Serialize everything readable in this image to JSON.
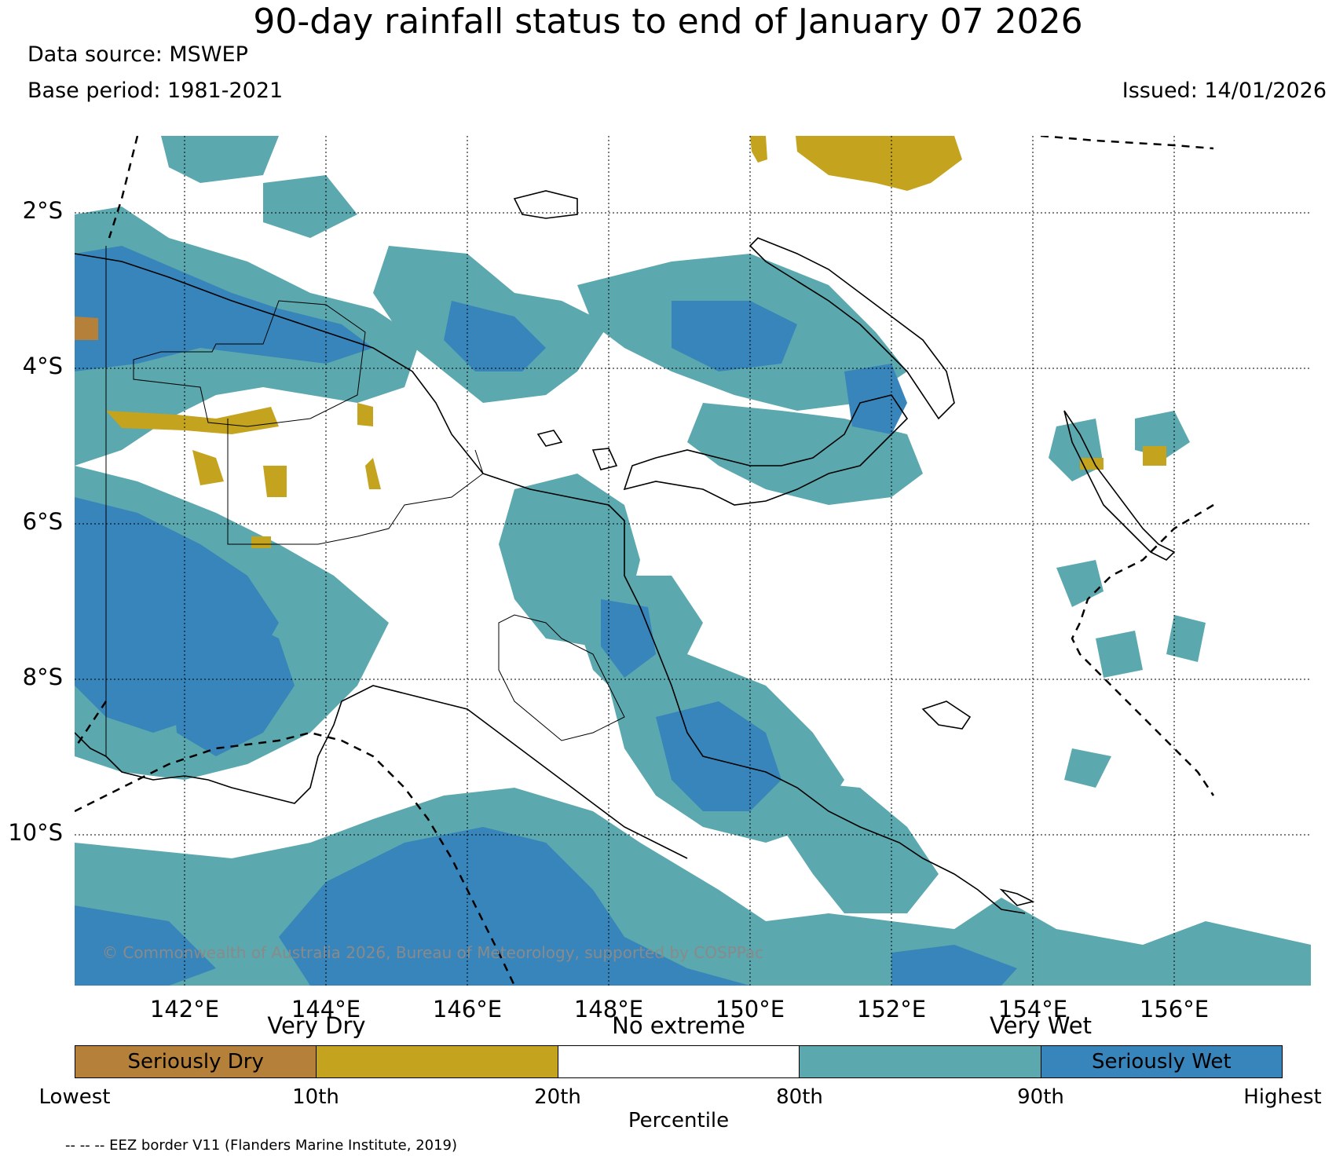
{
  "title": "90-day rainfall status to end of January 07 2026",
  "data_source": "Data source: MSWEP",
  "base_period": "Base period: 1981-2021",
  "issued": "Issued: 14/01/2026",
  "copyright": "© Commonwealth of Australia 2026, Bureau of Meteorology, supported by COSPPac",
  "lat_labels": [
    "2°S",
    "4°S",
    "6°S",
    "8°S",
    "10°S"
  ],
  "lon_labels": [
    "142°E",
    "144°E",
    "146°E",
    "148°E",
    "150°E",
    "152°E",
    "154°E",
    "156°E"
  ],
  "colorbar": {
    "group_labels": [
      "Very Dry",
      "No extreme",
      "Very Wet"
    ],
    "segments": [
      {
        "label": "Seriously Dry",
        "color": "#b5803a"
      },
      {
        "label": "",
        "color": "#c4a31e"
      },
      {
        "label": "",
        "color": "#ffffff"
      },
      {
        "label": "",
        "color": "#5ba8ae"
      },
      {
        "label": "Seriously Wet",
        "color": "#3785bb"
      }
    ],
    "ticks": [
      "Lowest",
      "10th",
      "20th",
      "80th",
      "90th",
      "Highest"
    ],
    "axis_label": "Percentile"
  },
  "eez_note": "-- -- -- EEZ border V11 (Flanders Marine Institute, 2019)",
  "colors": {
    "seriously_dry": "#b5803a",
    "very_dry": "#c4a31e",
    "very_wet": "#5ba8ae",
    "seriously_wet": "#3785bb"
  }
}
